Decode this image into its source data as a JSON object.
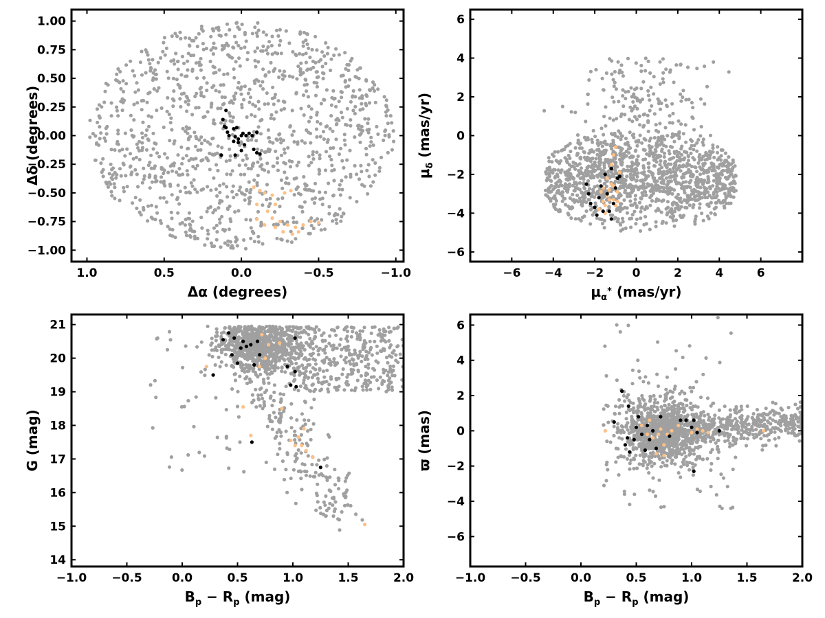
{
  "colors": {
    "field": "#a0a0a0",
    "members_black": "#000000",
    "members_orange": "#fdc086",
    "background": "#ffffff"
  },
  "chart_data": [
    {
      "id": "panel-sky",
      "type": "scatter",
      "xlabel": "Δα (degrees)",
      "ylabel": "Δδ (degrees)",
      "xlim": [
        1.1,
        -1.05
      ],
      "ylim": [
        -1.1,
        1.1
      ],
      "x_inverted": true,
      "xticks": [
        1.0,
        0.5,
        0.0,
        -0.5,
        -1.0
      ],
      "xtick_labels": [
        "1.0",
        "0.5",
        "0.0",
        "−0.5",
        "−1.0"
      ],
      "yticks": [
        1.0,
        0.75,
        0.5,
        0.25,
        0.0,
        -0.25,
        -0.5,
        -0.75,
        -1.0
      ],
      "ytick_labels": [
        "1.00",
        "0.75",
        "0.50",
        "0.25",
        "0.00",
        "−0.25",
        "−0.50",
        "−0.75",
        "−1.00"
      ],
      "grid": false,
      "field_cloud": {
        "shape": "disk",
        "center": [
          0.0,
          0.0
        ],
        "radius": [
          0.99,
          0.99
        ],
        "n": 1200
      },
      "series_black": [
        [
          0.1,
          0.22
        ],
        [
          0.12,
          0.14
        ],
        [
          0.11,
          0.08
        ],
        [
          0.09,
          0.03
        ],
        [
          0.05,
          0.06
        ],
        [
          0.03,
          0.07
        ],
        [
          0.04,
          -0.01
        ],
        [
          0.02,
          -0.03
        ],
        [
          0.0,
          0.0
        ],
        [
          -0.01,
          0.02
        ],
        [
          -0.03,
          0.0
        ],
        [
          -0.05,
          0.02
        ],
        [
          -0.07,
          0.0
        ],
        [
          -0.1,
          0.03
        ],
        [
          0.05,
          -0.05
        ],
        [
          0.02,
          -0.06
        ],
        [
          -0.02,
          -0.08
        ],
        [
          0.04,
          -0.17
        ],
        [
          0.0,
          -0.13
        ],
        [
          -0.08,
          -0.12
        ],
        [
          -0.1,
          -0.15
        ],
        [
          0.13,
          -0.17
        ],
        [
          0.1,
          0.07
        ],
        [
          0.08,
          0.0
        ],
        [
          -0.12,
          -0.16
        ]
      ],
      "series_orange": [
        [
          -0.08,
          -0.45
        ],
        [
          -0.12,
          -0.48
        ],
        [
          -0.15,
          -0.5
        ],
        [
          -0.2,
          -0.52
        ],
        [
          -0.22,
          -0.6
        ],
        [
          -0.28,
          -0.5
        ],
        [
          -0.32,
          -0.48
        ],
        [
          -0.1,
          -0.6
        ],
        [
          -0.17,
          -0.66
        ],
        [
          -0.2,
          -0.72
        ],
        [
          -0.25,
          -0.75
        ],
        [
          -0.3,
          -0.78
        ],
        [
          -0.35,
          -0.8
        ],
        [
          -0.4,
          -0.78
        ],
        [
          -0.45,
          -0.75
        ],
        [
          -0.5,
          -0.76
        ],
        [
          -0.22,
          -0.8
        ],
        [
          -0.27,
          -0.84
        ],
        [
          -0.33,
          -0.86
        ],
        [
          -0.1,
          -0.73
        ],
        [
          -0.15,
          -0.78
        ],
        [
          -0.37,
          -0.84
        ]
      ]
    },
    {
      "id": "panel-pm",
      "type": "scatter",
      "xlabel": "μ_α* (mas/yr)",
      "ylabel": "μ_δ (mas/yr)",
      "xlim": [
        -8,
        8
      ],
      "ylim": [
        -6.5,
        6.5
      ],
      "xticks": [
        -6,
        -4,
        -2,
        0,
        2,
        4,
        6
      ],
      "xtick_labels": [
        "−6",
        "−4",
        "−2",
        "0",
        "2",
        "4",
        "6"
      ],
      "yticks": [
        6,
        4,
        2,
        0,
        -2,
        -4,
        -6
      ],
      "ytick_labels": [
        "6",
        "4",
        "2",
        "0",
        "−2",
        "−4",
        "−6"
      ],
      "grid": false,
      "field_cloud": {
        "shape": "blob",
        "center": [
          0.2,
          -2.3
        ],
        "spread": [
          2.1,
          1.4
        ],
        "n": 1500
      },
      "series_black": [
        [
          -2.3,
          -3.0
        ],
        [
          -2.2,
          -3.5
        ],
        [
          -2.0,
          -3.7
        ],
        [
          -1.8,
          -3.2
        ],
        [
          -1.7,
          -2.6
        ],
        [
          -1.5,
          -2.0
        ],
        [
          -1.4,
          -3.0
        ],
        [
          -1.3,
          -3.9
        ],
        [
          -1.2,
          -4.3
        ],
        [
          -1.1,
          -3.5
        ],
        [
          -1.0,
          -2.7
        ],
        [
          -0.9,
          -2.2
        ],
        [
          -0.8,
          -2.1
        ],
        [
          -1.6,
          -3.9
        ],
        [
          -1.9,
          -4.1
        ],
        [
          -1.2,
          -1.7
        ],
        [
          -2.4,
          -2.5
        ]
      ],
      "series_orange": [
        [
          -1.8,
          -3.8
        ],
        [
          -1.6,
          -3.4
        ],
        [
          -1.5,
          -3.6
        ],
        [
          -1.4,
          -3.1
        ],
        [
          -1.3,
          -2.8
        ],
        [
          -1.2,
          -2.5
        ],
        [
          -1.1,
          -3.3
        ],
        [
          -1.0,
          -3.6
        ],
        [
          -0.9,
          -2.9
        ],
        [
          -1.4,
          -2.2
        ],
        [
          -1.2,
          -1.5
        ],
        [
          -1.1,
          -1.0
        ],
        [
          -1.0,
          -0.6
        ],
        [
          -0.8,
          -1.9
        ],
        [
          -1.7,
          -2.9
        ],
        [
          -1.5,
          -4.0
        ],
        [
          -1.3,
          -3.3
        ],
        [
          -0.9,
          -3.4
        ],
        [
          -1.6,
          -2.7
        ],
        [
          -1.1,
          -2.6
        ]
      ]
    },
    {
      "id": "panel-cmd",
      "type": "scatter",
      "xlabel": "B_p − R_p (mag)",
      "ylabel": "G (mag)",
      "xlim": [
        -1.0,
        2.0
      ],
      "ylim": [
        13.8,
        21.3
      ],
      "y_inverted": false,
      "xticks": [
        -1.0,
        -0.5,
        0.0,
        0.5,
        1.0,
        1.5,
        2.0
      ],
      "xtick_labels": [
        "−1.0",
        "−0.5",
        "0.0",
        "0.5",
        "1.0",
        "1.5",
        "2.0"
      ],
      "yticks": [
        21,
        20,
        19,
        18,
        17,
        16,
        15,
        14
      ],
      "ytick_labels": [
        "21",
        "20",
        "19",
        "18",
        "17",
        "16",
        "15",
        "14"
      ],
      "grid": false,
      "field_cloud": {
        "shape": "cmd",
        "n": 1500
      },
      "series_black": [
        [
          0.37,
          20.55
        ],
        [
          0.42,
          20.75
        ],
        [
          0.47,
          20.6
        ],
        [
          0.45,
          20.1
        ],
        [
          0.5,
          19.85
        ],
        [
          0.53,
          20.3
        ],
        [
          0.55,
          20.5
        ],
        [
          0.58,
          20.35
        ],
        [
          0.62,
          20.4
        ],
        [
          0.68,
          20.5
        ],
        [
          0.7,
          20.1
        ],
        [
          0.65,
          19.8
        ],
        [
          0.28,
          19.5
        ],
        [
          0.63,
          17.5
        ],
        [
          0.95,
          19.75
        ],
        [
          0.98,
          19.2
        ],
        [
          1.02,
          19.6
        ],
        [
          1.03,
          19.15
        ],
        [
          1.02,
          20.6
        ],
        [
          1.25,
          16.75
        ]
      ],
      "series_orange": [
        [
          0.22,
          19.75
        ],
        [
          0.55,
          18.55
        ],
        [
          0.62,
          17.7
        ],
        [
          0.65,
          19.8
        ],
        [
          0.7,
          19.75
        ],
        [
          0.72,
          20.7
        ],
        [
          0.78,
          20.4
        ],
        [
          0.88,
          20.45
        ],
        [
          0.9,
          18.5
        ],
        [
          0.98,
          17.55
        ],
        [
          1.02,
          17.4
        ],
        [
          1.05,
          17.65
        ],
        [
          1.08,
          17.4
        ],
        [
          1.1,
          17.9
        ],
        [
          1.12,
          17.25
        ],
        [
          1.18,
          17.05
        ],
        [
          1.65,
          15.05
        ],
        [
          0.75,
          20.0
        ]
      ]
    },
    {
      "id": "panel-parallax",
      "type": "scatter",
      "xlabel": "B_p − R_p (mag)",
      "ylabel": "ϖ (mas)",
      "xlim": [
        -1.0,
        2.0
      ],
      "ylim": [
        -7.7,
        6.6
      ],
      "xticks": [
        -1.0,
        -0.5,
        0.0,
        0.5,
        1.0,
        1.5,
        2.0
      ],
      "xtick_labels": [
        "−1.0",
        "−0.5",
        "0.0",
        "0.5",
        "1.0",
        "1.5",
        "2.0"
      ],
      "yticks": [
        6,
        4,
        2,
        0,
        -2,
        -4,
        -6
      ],
      "ytick_labels": [
        "6",
        "4",
        "2",
        "0",
        "−2",
        "−4",
        "−6"
      ],
      "grid": false,
      "field_cloud": {
        "shape": "par",
        "n": 1500
      },
      "series_black": [
        [
          0.3,
          0.5
        ],
        [
          0.37,
          2.25
        ],
        [
          0.4,
          -0.8
        ],
        [
          0.42,
          -0.4
        ],
        [
          0.44,
          -1.2
        ],
        [
          0.43,
          1.4
        ],
        [
          0.48,
          -0.5
        ],
        [
          0.5,
          0.2
        ],
        [
          0.52,
          0.8
        ],
        [
          0.55,
          -0.2
        ],
        [
          0.58,
          -1.1
        ],
        [
          0.6,
          0.3
        ],
        [
          0.62,
          -0.5
        ],
        [
          0.65,
          0.0
        ],
        [
          0.68,
          -1.0
        ],
        [
          0.72,
          0.8
        ],
        [
          0.9,
          0.6
        ],
        [
          0.95,
          0.6
        ],
        [
          1.0,
          0.2
        ],
        [
          1.02,
          0.6
        ],
        [
          1.05,
          -0.1
        ],
        [
          1.02,
          -2.3
        ],
        [
          1.25,
          0.0
        ],
        [
          0.8,
          -0.3
        ]
      ],
      "series_orange": [
        [
          0.22,
          0.0
        ],
        [
          0.55,
          0.3
        ],
        [
          0.6,
          -0.2
        ],
        [
          0.62,
          0.6
        ],
        [
          0.65,
          -0.4
        ],
        [
          0.68,
          -1.3
        ],
        [
          0.7,
          -0.2
        ],
        [
          0.72,
          0.1
        ],
        [
          0.75,
          -0.8
        ],
        [
          0.78,
          -0.2
        ],
        [
          0.82,
          0.0
        ],
        [
          0.88,
          0.3
        ],
        [
          1.0,
          -0.1
        ],
        [
          1.05,
          0.1
        ],
        [
          1.1,
          0.0
        ],
        [
          1.15,
          -0.1
        ],
        [
          1.65,
          0.0
        ],
        [
          0.75,
          -1.4
        ]
      ]
    }
  ]
}
